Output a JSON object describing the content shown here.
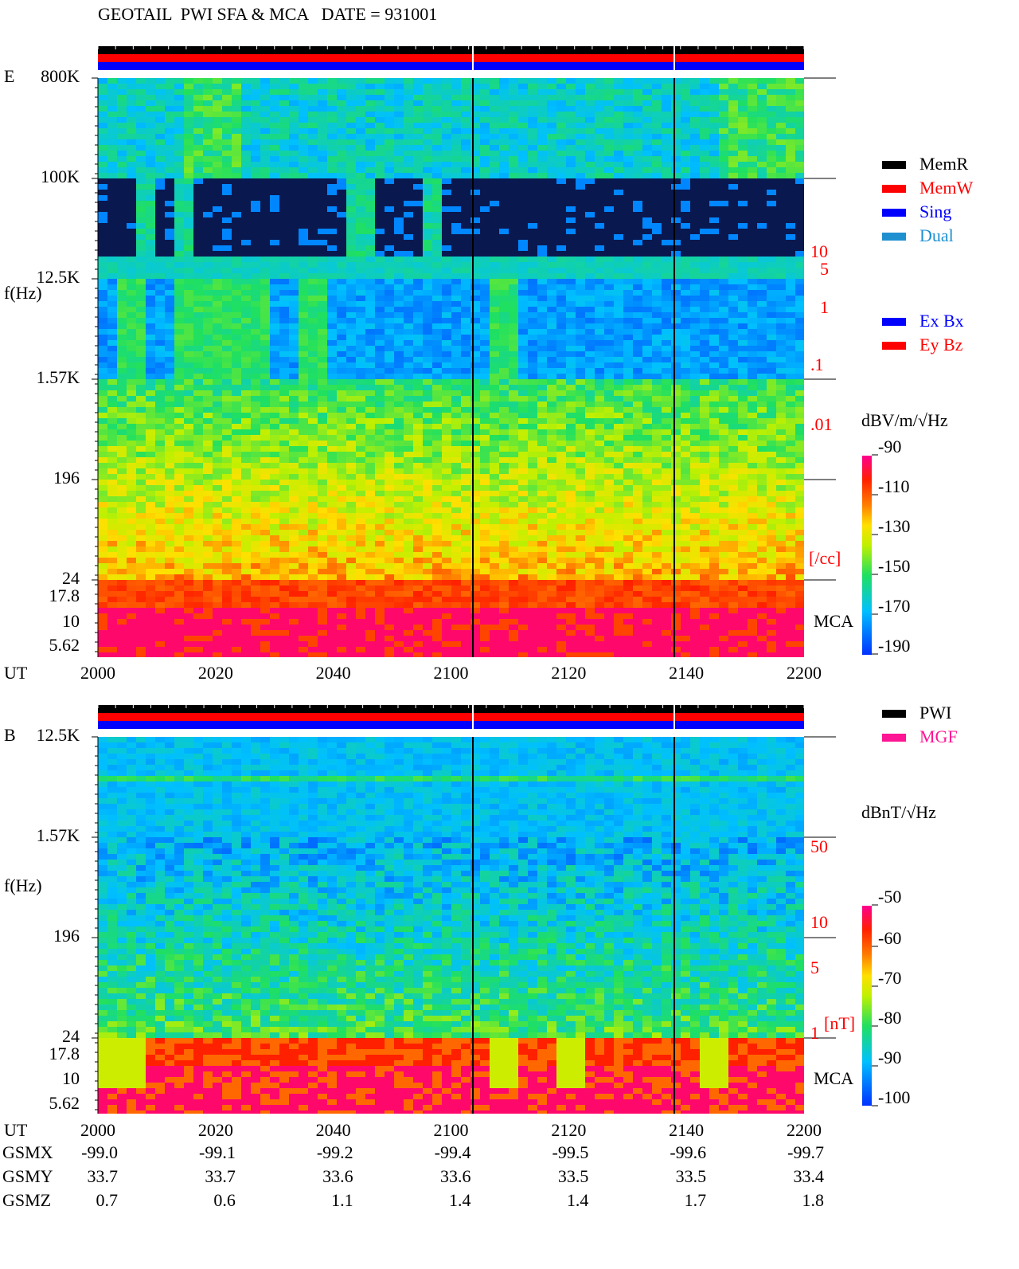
{
  "header": {
    "title": "GEOTAIL  PWI SFA & MCA   DATE = 931001"
  },
  "panels": [
    {
      "label": "E",
      "y_axis_label": "f(Hz)",
      "y_ticks": [
        "800K",
        "100K",
        "12.5K",
        "1.57K",
        "196",
        "24",
        "17.8",
        "10",
        "5.62"
      ],
      "x_axis_label": "UT",
      "x_ticks": [
        "2000",
        "2020",
        "2040",
        "2100",
        "2120",
        "2140",
        "2200"
      ],
      "right_scale": [
        "10",
        "5",
        "1",
        ".1",
        ".01",
        "[/cc]"
      ],
      "mca_label": "MCA",
      "legend": [
        {
          "label": "MemR",
          "color": "#000000"
        },
        {
          "label": "MemW",
          "color": "#ff0000"
        },
        {
          "label": "Sing",
          "color": "#0000ff"
        },
        {
          "label": "Dual",
          "color": "#1e90d0"
        }
      ],
      "legend2": [
        {
          "label": "Ex Bx",
          "color": "#0000ff"
        },
        {
          "label": "Ey Bz",
          "color": "#ff0000"
        }
      ],
      "colorbar": {
        "unit": "dBV/m/√Hz",
        "ticks": [
          "-90",
          "-110",
          "-130",
          "-150",
          "-170",
          "-190"
        ]
      }
    },
    {
      "label": "B",
      "y_axis_label": "f(Hz)",
      "y_ticks": [
        "12.5K",
        "1.57K",
        "196",
        "24",
        "17.8",
        "10",
        "5.62"
      ],
      "x_axis_label": "UT",
      "x_ticks": [
        "2000",
        "2020",
        "2040",
        "2100",
        "2120",
        "2140",
        "2200"
      ],
      "right_scale": [
        "50",
        "10",
        "5",
        "1",
        "[nT]"
      ],
      "mca_label": "MCA",
      "legend": [
        {
          "label": "PWI",
          "color": "#000000"
        },
        {
          "label": "MGF",
          "color": "#ff1493"
        }
      ],
      "colorbar": {
        "unit": "dBnT/√Hz",
        "ticks": [
          "-50",
          "-60",
          "-70",
          "-80",
          "-90",
          "-100"
        ]
      }
    }
  ],
  "orbit": {
    "rows": [
      {
        "label": "GSMX",
        "values": [
          "-99.0",
          "-99.1",
          "-99.2",
          "-99.4",
          "-99.5",
          "-99.6",
          "-99.7"
        ]
      },
      {
        "label": "GSMY",
        "values": [
          "33.7",
          "33.7",
          "33.6",
          "33.6",
          "33.5",
          "33.5",
          "33.4"
        ]
      },
      {
        "label": "GSMZ",
        "values": [
          "0.7",
          "0.6",
          "1.1",
          "1.4",
          "1.4",
          "1.7",
          "1.8"
        ]
      }
    ]
  }
}
